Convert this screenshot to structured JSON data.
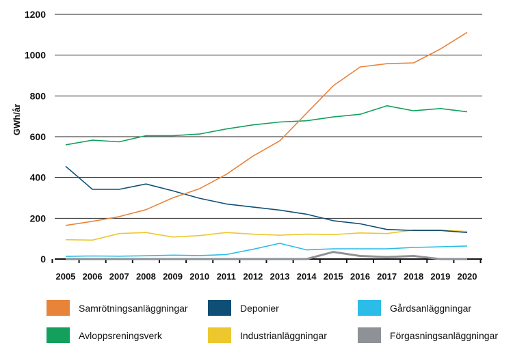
{
  "chart_data": {
    "type": "line",
    "title": "",
    "xlabel": "",
    "ylabel": "GWh/år",
    "ylim": [
      0,
      1200
    ],
    "yticks": [
      0,
      200,
      400,
      600,
      800,
      1000,
      1200
    ],
    "grid": "horizontal",
    "legend_position": "bottom",
    "categories": [
      "2005",
      "2006",
      "2007",
      "2008",
      "2009",
      "2010",
      "2011",
      "2012",
      "2013",
      "2014",
      "2015",
      "2016",
      "2017",
      "2018",
      "2019",
      "2020"
    ],
    "series": [
      {
        "name": "Samrötningsanläggningar",
        "color": "#E8833A",
        "values": [
          165,
          185,
          208,
          242,
          300,
          345,
          415,
          505,
          580,
          715,
          850,
          942,
          958,
          962,
          1030,
          1112
        ]
      },
      {
        "name": "Deponier",
        "color": "#0F4F75",
        "values": [
          455,
          342,
          342,
          368,
          335,
          298,
          270,
          255,
          240,
          220,
          188,
          173,
          145,
          140,
          140,
          130
        ]
      },
      {
        "name": "Gårdsanläggningar",
        "color": "#2BBCE8",
        "values": [
          13,
          15,
          14,
          16,
          19,
          17,
          22,
          48,
          77,
          45,
          50,
          50,
          50,
          57,
          60,
          64
        ]
      },
      {
        "name": "Avloppsreningsverk",
        "color": "#12A05C",
        "values": [
          560,
          583,
          575,
          605,
          605,
          613,
          638,
          658,
          672,
          678,
          697,
          710,
          752,
          727,
          738,
          722
        ]
      },
      {
        "name": "Industrianläggningar",
        "color": "#EDC72E",
        "values": [
          95,
          93,
          125,
          130,
          108,
          115,
          130,
          122,
          117,
          122,
          120,
          128,
          125,
          142,
          142,
          135
        ]
      },
      {
        "name": "Förgasningsanläggningar",
        "color": "#8E9195",
        "values": [
          0,
          0,
          0,
          0,
          0,
          0,
          0,
          0,
          0,
          0,
          35,
          15,
          10,
          15,
          0,
          0
        ]
      }
    ]
  }
}
